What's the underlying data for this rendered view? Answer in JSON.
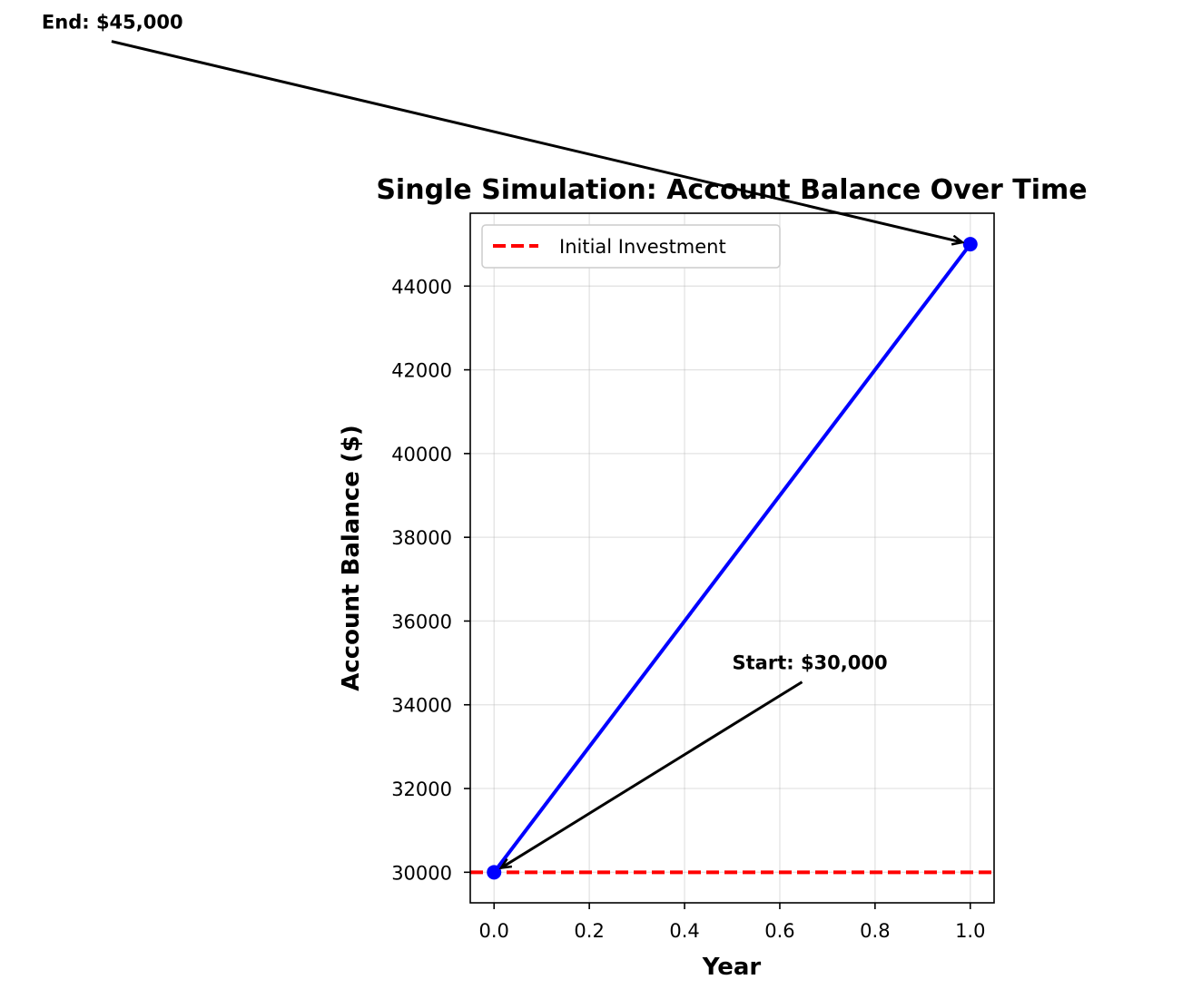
{
  "chart_data": {
    "type": "line",
    "title": "Single Simulation: Account Balance Over Time",
    "xlabel": "Year",
    "ylabel": "Account Balance ($)",
    "xlim": [
      -0.05,
      1.05
    ],
    "ylim": [
      29270,
      45740
    ],
    "x_ticks": [
      "0.0",
      "0.2",
      "0.4",
      "0.6",
      "0.8",
      "1.0"
    ],
    "x_tick_values": [
      0,
      0.2,
      0.4,
      0.6,
      0.8,
      1.0
    ],
    "y_ticks": [
      "30000",
      "32000",
      "34000",
      "36000",
      "38000",
      "40000",
      "42000",
      "44000"
    ],
    "y_tick_values": [
      30000,
      32000,
      34000,
      36000,
      38000,
      40000,
      42000,
      44000
    ],
    "grid": true,
    "legend_position": "top-left",
    "series": [
      {
        "x": [
          0,
          1
        ],
        "y": [
          30000,
          45000
        ],
        "color": "#0000ff",
        "marker": "circle"
      }
    ],
    "reference_lines": [
      {
        "name": "Initial Investment",
        "y": 30000,
        "color": "#ff0000",
        "style": "dashed"
      }
    ],
    "annotations": [
      {
        "text": "Start: $30,000",
        "target_x": 0,
        "target_y": 30000,
        "text_x": 0.5,
        "text_y": 35000
      },
      {
        "text": "End: $45,000",
        "target_x": 1,
        "target_y": 45000,
        "text_x": -0.95,
        "text_y": 50300
      }
    ]
  }
}
